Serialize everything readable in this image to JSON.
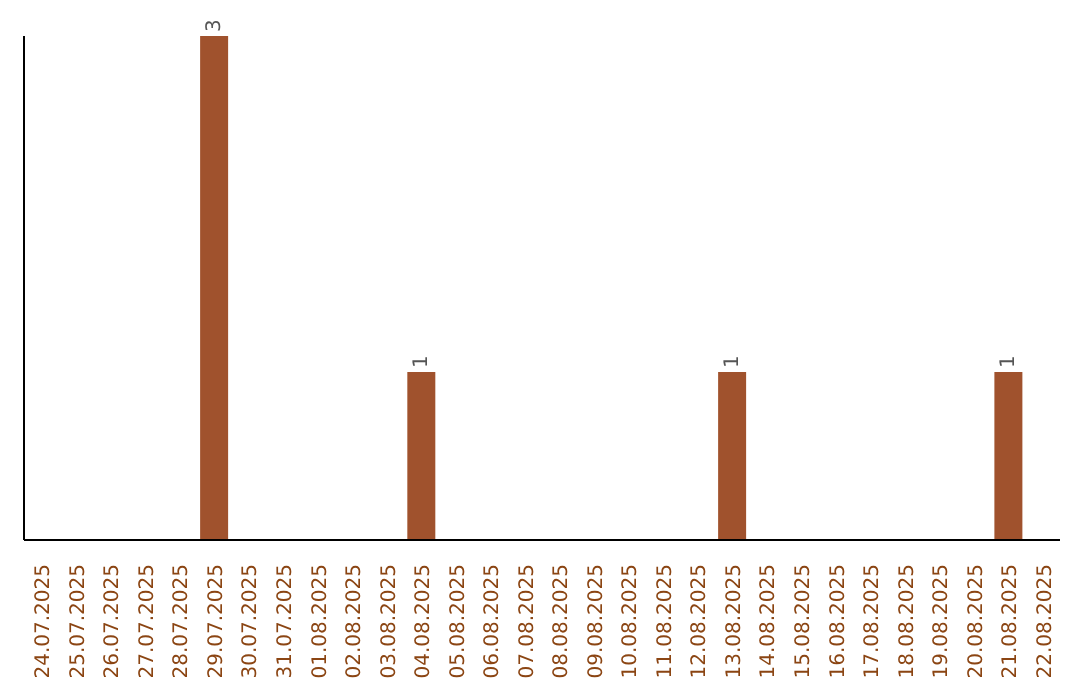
{
  "chart_data": {
    "type": "bar",
    "categories": [
      "24.07.2025",
      "25.07.2025",
      "26.07.2025",
      "27.07.2025",
      "28.07.2025",
      "29.07.2025",
      "30.07.2025",
      "31.07.2025",
      "01.08.2025",
      "02.08.2025",
      "03.08.2025",
      "04.08.2025",
      "05.08.2025",
      "06.08.2025",
      "07.08.2025",
      "08.08.2025",
      "09.08.2025",
      "10.08.2025",
      "11.08.2025",
      "12.08.2025",
      "13.08.2025",
      "14.08.2025",
      "15.08.2025",
      "16.08.2025",
      "17.08.2025",
      "18.08.2025",
      "19.08.2025",
      "20.08.2025",
      "21.08.2025",
      "22.08.2025"
    ],
    "values": [
      null,
      null,
      null,
      null,
      null,
      3,
      null,
      null,
      null,
      null,
      null,
      1,
      null,
      null,
      null,
      null,
      null,
      null,
      null,
      null,
      1,
      null,
      null,
      null,
      null,
      null,
      null,
      null,
      1,
      null
    ],
    "value_labels": [
      null,
      null,
      null,
      null,
      null,
      "3",
      null,
      null,
      null,
      null,
      null,
      "1",
      null,
      null,
      null,
      null,
      null,
      null,
      null,
      null,
      "1",
      null,
      null,
      null,
      null,
      null,
      null,
      null,
      "1",
      null
    ],
    "color": "#a0522d",
    "grid": false,
    "legend": false
  }
}
